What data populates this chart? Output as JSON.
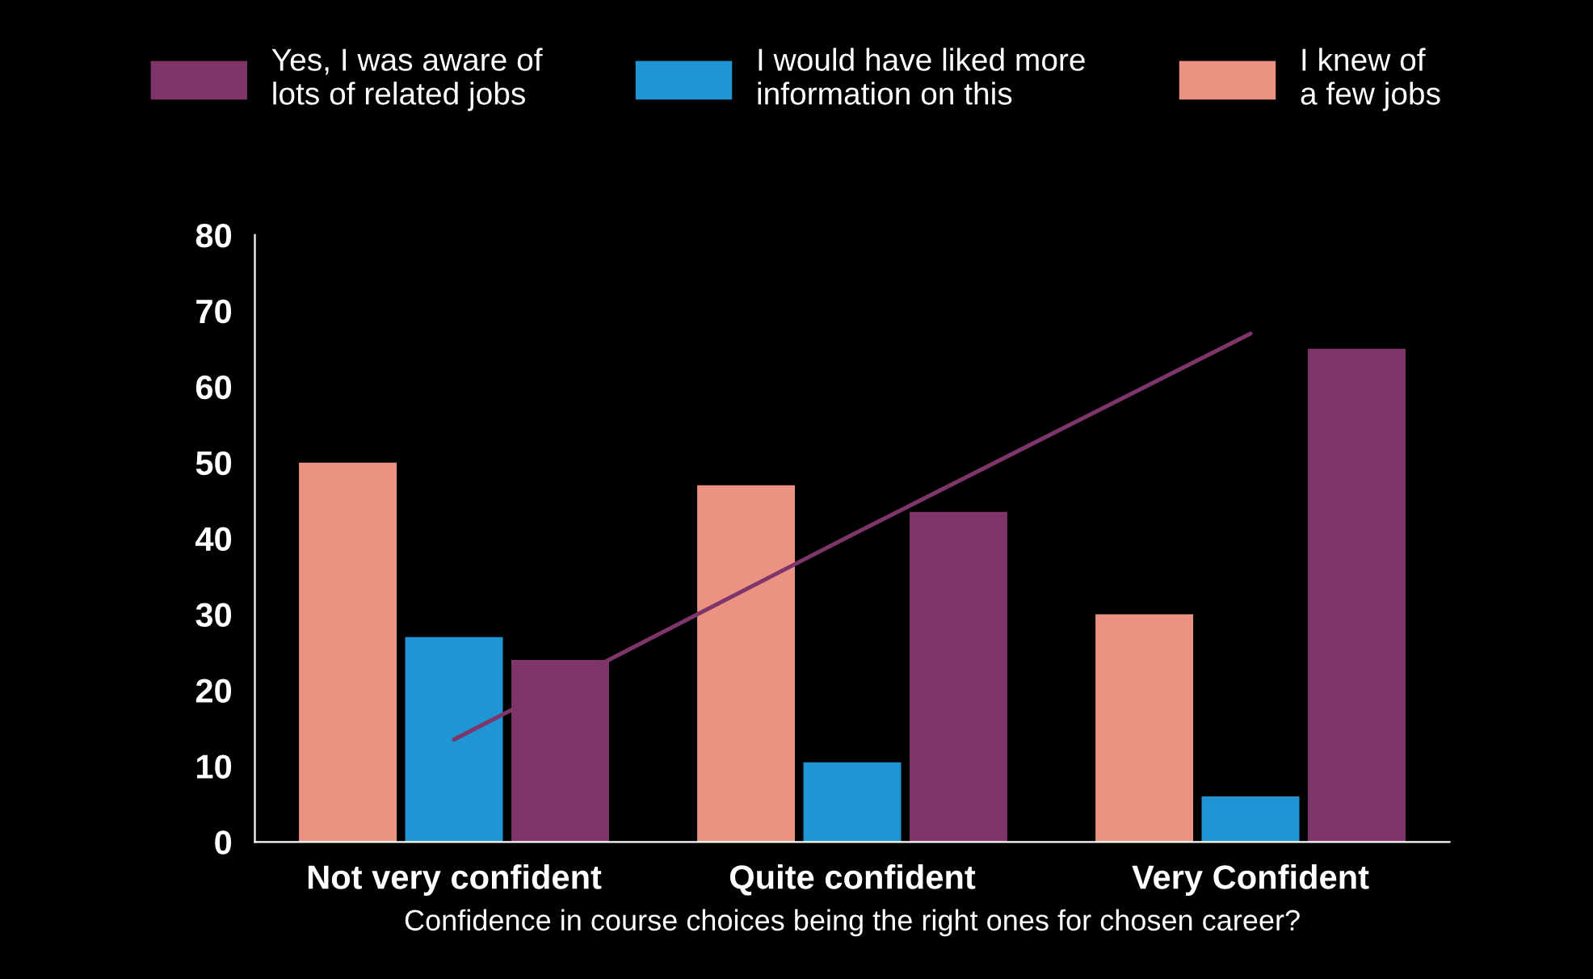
{
  "chart_data": {
    "type": "bar",
    "categories": [
      "Not very confident",
      "Quite confident",
      "Very Confident"
    ],
    "xlabel": "Confidence in course choices being the right ones for chosen career?",
    "series": [
      {
        "name": "Yes, I was aware of\nlots of related jobs",
        "color": "#7e3569",
        "values": [
          24,
          43.5,
          65
        ]
      },
      {
        "name": "I would have liked more\ninformation on this",
        "color": "#1f95d4",
        "values": [
          27,
          10.5,
          6
        ]
      },
      {
        "name": "I knew of\na few jobs",
        "color": "#ec9282",
        "values": [
          50,
          47,
          30
        ]
      },
      {
        "type": "line",
        "color": "#7e3569",
        "values": [
          13.5,
          40.5,
          67
        ]
      }
    ],
    "ylim": [
      0,
      80
    ],
    "yticks": [
      0,
      10,
      20,
      30,
      40,
      50,
      60,
      70,
      80
    ],
    "grid": false,
    "legend": "top"
  }
}
